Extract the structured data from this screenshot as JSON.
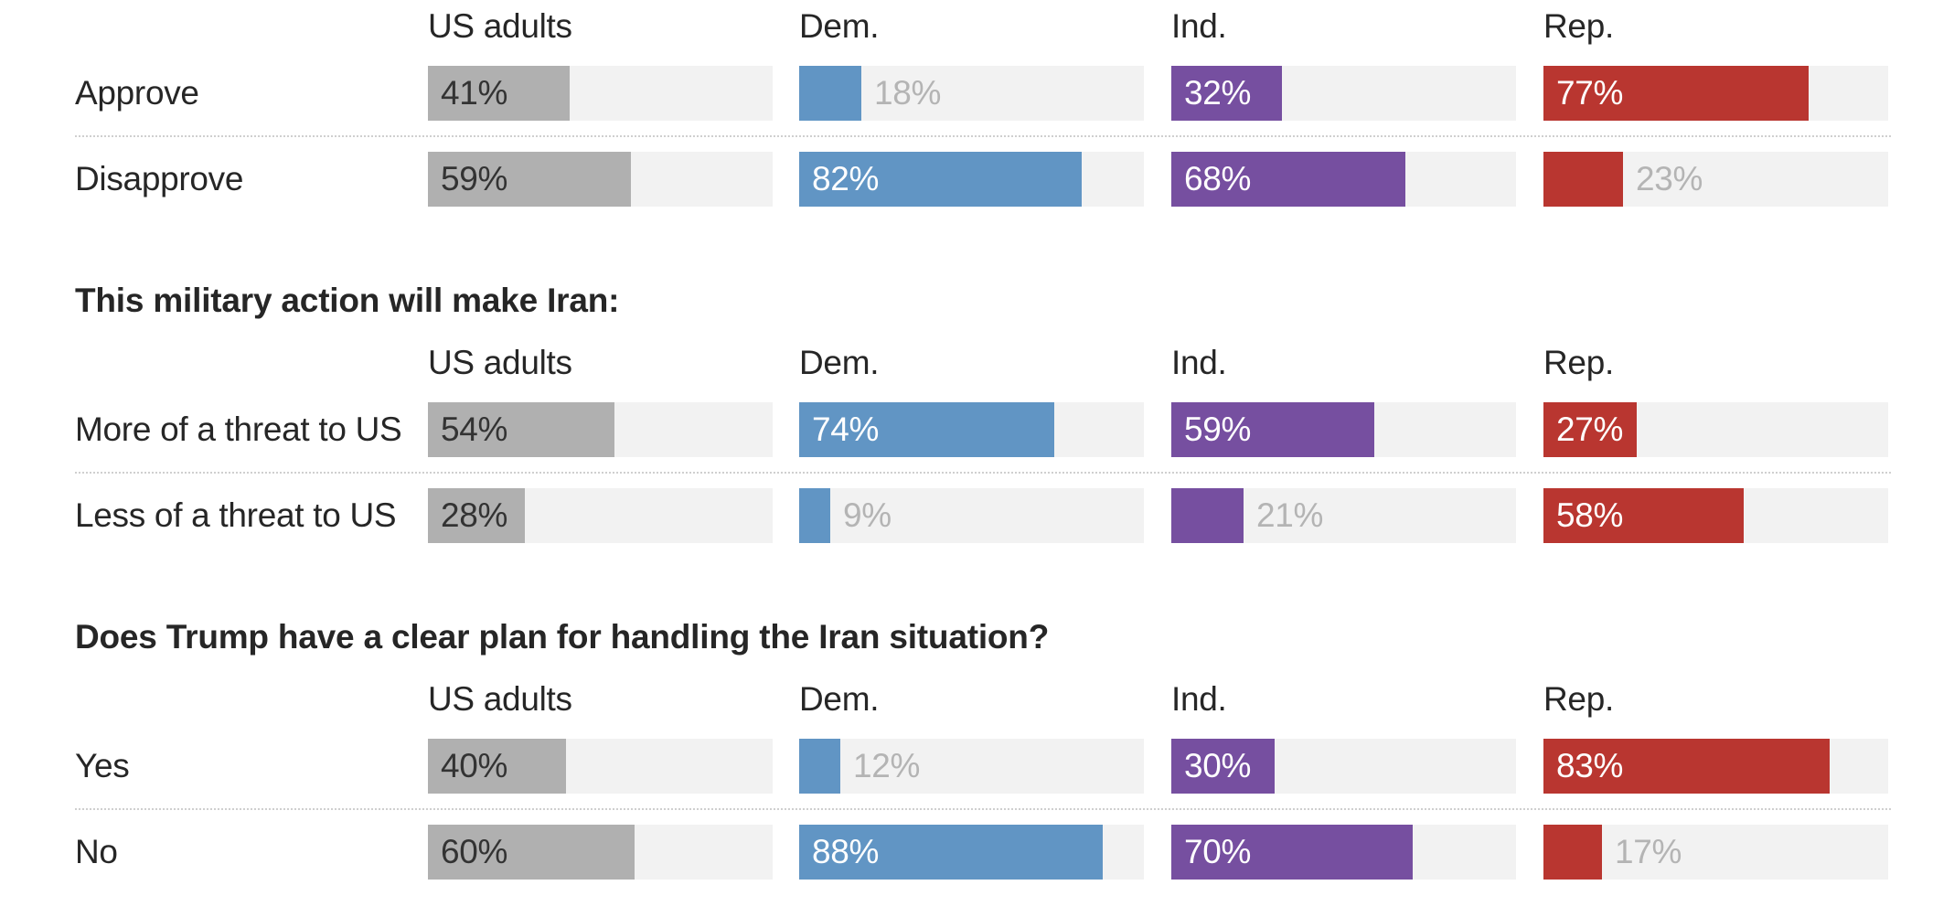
{
  "chart_data": {
    "type": "bar",
    "orientation": "horizontal",
    "columns": [
      "US adults",
      "Dem.",
      "Ind.",
      "Rep."
    ],
    "colors": {
      "US adults": "#b0b0b0",
      "Dem.": "#6195c4",
      "Ind.": "#764fa0",
      "Rep.": "#b93630",
      "track": "#f2f2f2"
    },
    "xlim": [
      0,
      100
    ],
    "sections": [
      {
        "title": "",
        "rows": [
          {
            "label": "Approve",
            "values": [
              41,
              18,
              32,
              77
            ]
          },
          {
            "label": "Disapprove",
            "values": [
              59,
              82,
              68,
              23
            ]
          }
        ]
      },
      {
        "title": "This military action will make Iran:",
        "rows": [
          {
            "label": "More of a threat to US",
            "values": [
              54,
              74,
              59,
              27
            ]
          },
          {
            "label": "Less of a threat to US",
            "values": [
              28,
              9,
              21,
              58
            ]
          }
        ]
      },
      {
        "title": "Does Trump have a clear plan for handling the Iran situation?",
        "rows": [
          {
            "label": "Yes",
            "values": [
              40,
              12,
              30,
              83
            ]
          },
          {
            "label": "No",
            "values": [
              60,
              88,
              70,
              17
            ]
          }
        ]
      }
    ]
  }
}
